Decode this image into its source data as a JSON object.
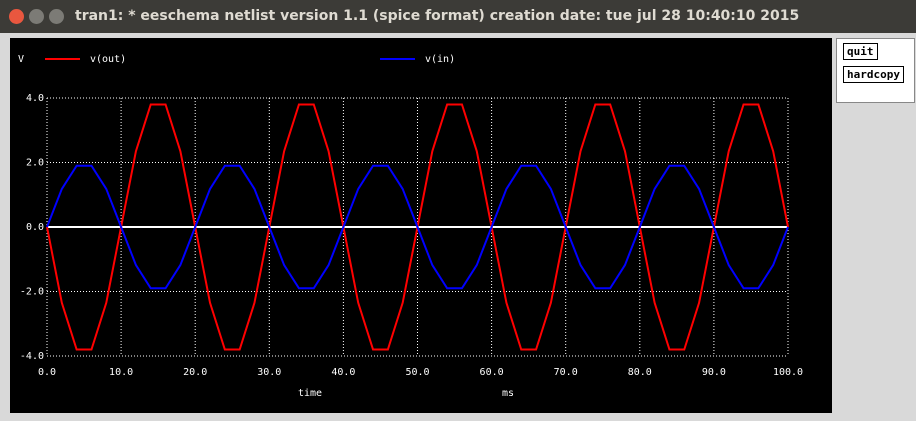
{
  "window": {
    "title": "tran1: * eeschema netlist version 1.1 (spice format) creation date: tue jul 28 10:40:10 2015",
    "buttons": [
      "quit",
      "hardcopy"
    ]
  },
  "chart_data": {
    "type": "line",
    "ylabel": "V",
    "xlabel": "time",
    "xunit": "ms",
    "x": [
      0,
      2,
      4,
      6,
      8,
      10,
      12,
      14,
      16,
      18,
      20,
      22,
      24,
      26,
      28,
      30,
      32,
      34,
      36,
      38,
      40,
      42,
      44,
      46,
      48,
      50,
      52,
      54,
      56,
      58,
      60,
      62,
      64,
      66,
      68,
      70,
      72,
      74,
      76,
      78,
      80,
      82,
      84,
      86,
      88,
      90,
      92,
      94,
      96,
      98,
      100
    ],
    "series": [
      {
        "name": "v(out)",
        "color": "#ff0000",
        "values": [
          0,
          -2.35,
          -3.8,
          -3.8,
          -2.35,
          0,
          2.35,
          3.8,
          3.8,
          2.35,
          0,
          -2.35,
          -3.8,
          -3.8,
          -2.35,
          0,
          2.35,
          3.8,
          3.8,
          2.35,
          0,
          -2.35,
          -3.8,
          -3.8,
          -2.35,
          0,
          2.35,
          3.8,
          3.8,
          2.35,
          0,
          -2.35,
          -3.8,
          -3.8,
          -2.35,
          0,
          2.35,
          3.8,
          3.8,
          2.35,
          0,
          -2.35,
          -3.8,
          -3.8,
          -2.35,
          0,
          2.35,
          3.8,
          3.8,
          2.35,
          0
        ]
      },
      {
        "name": "v(in)",
        "color": "#0000ff",
        "values": [
          0,
          1.18,
          1.9,
          1.9,
          1.18,
          0,
          -1.18,
          -1.9,
          -1.9,
          -1.18,
          0,
          1.18,
          1.9,
          1.9,
          1.18,
          0,
          -1.18,
          -1.9,
          -1.9,
          -1.18,
          0,
          1.18,
          1.9,
          1.9,
          1.18,
          0,
          -1.18,
          -1.9,
          -1.9,
          -1.18,
          0,
          1.18,
          1.9,
          1.9,
          1.18,
          0,
          -1.18,
          -1.9,
          -1.9,
          -1.18,
          0,
          1.18,
          1.9,
          1.9,
          1.18,
          0,
          -1.18,
          -1.9,
          -1.9,
          -1.18,
          0
        ]
      }
    ],
    "xlim": [
      0,
      100
    ],
    "xticks": [
      {
        "value": 0,
        "label": "0.0"
      },
      {
        "value": 10,
        "label": "10.0"
      },
      {
        "value": 20,
        "label": "20.0"
      },
      {
        "value": 30,
        "label": "30.0"
      },
      {
        "value": 40,
        "label": "40.0"
      },
      {
        "value": 50,
        "label": "50.0"
      },
      {
        "value": 60,
        "label": "60.0"
      },
      {
        "value": 70,
        "label": "70.0"
      },
      {
        "value": 80,
        "label": "80.0"
      },
      {
        "value": 90,
        "label": "90.0"
      },
      {
        "value": 100,
        "label": "100.0"
      }
    ],
    "ylim": [
      -4,
      4
    ],
    "yticks": [
      {
        "value": -4,
        "label": "-4.0"
      },
      {
        "value": -2,
        "label": "-2.0"
      },
      {
        "value": 0,
        "label": "0.0"
      },
      {
        "value": 2,
        "label": "2.0"
      },
      {
        "value": 4,
        "label": "4.0"
      }
    ],
    "grid": true
  }
}
